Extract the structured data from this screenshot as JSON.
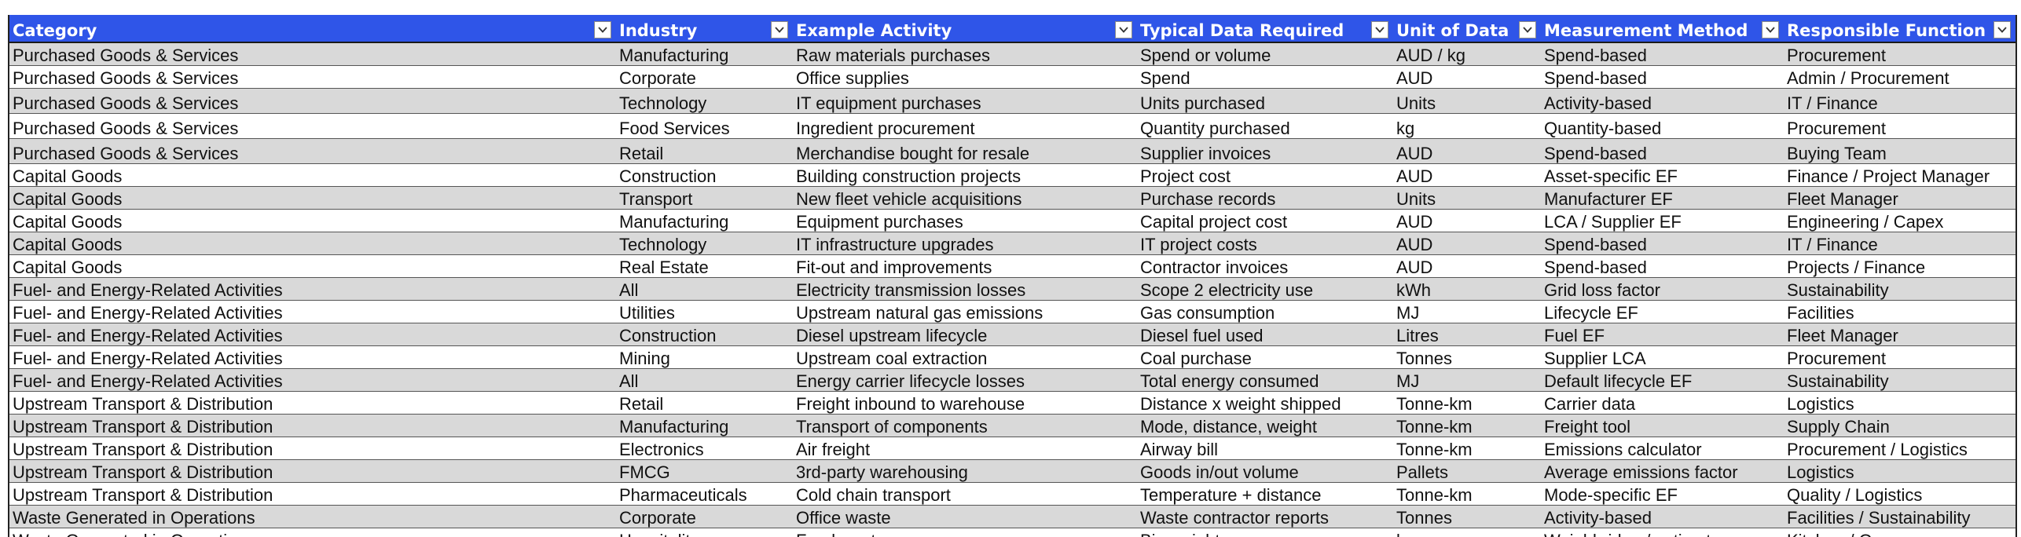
{
  "columns": [
    "Category",
    "Industry",
    "Example Activity",
    "Typical Data Required",
    "Unit of Data",
    "Measurement Method",
    "Responsible Function"
  ],
  "filter_icon": "chevron-down-icon",
  "rows": [
    [
      "Purchased Goods & Services",
      "Manufacturing",
      "Raw materials purchases",
      "Spend or volume",
      "AUD / kg",
      "Spend-based",
      "Procurement"
    ],
    [
      "Purchased Goods & Services",
      "Corporate",
      "Office supplies",
      "Spend",
      "AUD",
      "Spend-based",
      "Admin / Procurement"
    ],
    [
      "Purchased Goods & Services",
      "Technology",
      "IT equipment purchases",
      "Units purchased",
      "Units",
      "Activity-based",
      "IT / Finance"
    ],
    [
      "Purchased Goods & Services",
      "Food Services",
      "Ingredient procurement",
      "Quantity purchased",
      "kg",
      "Quantity-based",
      "Procurement"
    ],
    [
      "Purchased Goods & Services",
      "Retail",
      "Merchandise bought for resale",
      "Supplier invoices",
      "AUD",
      "Spend-based",
      "Buying Team"
    ],
    [
      "Capital Goods",
      "Construction",
      "Building construction projects",
      "Project cost",
      "AUD",
      "Asset-specific EF",
      "Finance / Project Manager"
    ],
    [
      "Capital Goods",
      "Transport",
      "New fleet vehicle acquisitions",
      "Purchase records",
      "Units",
      "Manufacturer EF",
      "Fleet Manager"
    ],
    [
      "Capital Goods",
      "Manufacturing",
      "Equipment purchases",
      "Capital project cost",
      "AUD",
      "LCA / Supplier EF",
      "Engineering / Capex"
    ],
    [
      "Capital Goods",
      "Technology",
      "IT infrastructure upgrades",
      "IT project costs",
      "AUD",
      "Spend-based",
      "IT / Finance"
    ],
    [
      "Capital Goods",
      "Real Estate",
      "Fit-out and improvements",
      "Contractor invoices",
      "AUD",
      "Spend-based",
      "Projects / Finance"
    ],
    [
      "Fuel- and Energy-Related Activities",
      "All",
      "Electricity transmission losses",
      "Scope 2 electricity use",
      "kWh",
      "Grid loss factor",
      "Sustainability"
    ],
    [
      "Fuel- and Energy-Related Activities",
      "Utilities",
      "Upstream natural gas emissions",
      "Gas consumption",
      "MJ",
      "Lifecycle EF",
      "Facilities"
    ],
    [
      "Fuel- and Energy-Related Activities",
      "Construction",
      "Diesel upstream lifecycle",
      "Diesel fuel used",
      "Litres",
      "Fuel EF",
      "Fleet Manager"
    ],
    [
      "Fuel- and Energy-Related Activities",
      "Mining",
      "Upstream coal extraction",
      "Coal purchase",
      "Tonnes",
      "Supplier LCA",
      "Procurement"
    ],
    [
      "Fuel- and Energy-Related Activities",
      "All",
      "Energy carrier lifecycle losses",
      "Total energy consumed",
      "MJ",
      "Default lifecycle EF",
      "Sustainability"
    ],
    [
      "Upstream Transport & Distribution",
      "Retail",
      "Freight inbound to warehouse",
      "Distance x weight shipped",
      "Tonne-km",
      "Carrier data",
      "Logistics"
    ],
    [
      "Upstream Transport & Distribution",
      "Manufacturing",
      "Transport of components",
      "Mode, distance, weight",
      "Tonne-km",
      "Freight tool",
      "Supply Chain"
    ],
    [
      "Upstream Transport & Distribution",
      "Electronics",
      "Air freight",
      "Airway bill",
      "Tonne-km",
      "Emissions calculator",
      "Procurement / Logistics"
    ],
    [
      "Upstream Transport & Distribution",
      "FMCG",
      "3rd-party warehousing",
      "Goods in/out volume",
      "Pallets",
      "Average emissions factor",
      "Logistics"
    ],
    [
      "Upstream Transport & Distribution",
      "Pharmaceuticals",
      "Cold chain transport",
      "Temperature + distance",
      "Tonne-km",
      "Mode-specific EF",
      "Quality / Logistics"
    ],
    [
      "Waste Generated in Operations",
      "Corporate",
      "Office waste",
      "Waste contractor reports",
      "Tonnes",
      "Activity-based",
      "Facilities / Sustainability"
    ],
    [
      "Waste Generated in Operations",
      "Hospitality",
      "Food waste",
      "Bin weights",
      "kg",
      "Weighbridge / estimate",
      "Kitchen / Ops"
    ]
  ]
}
